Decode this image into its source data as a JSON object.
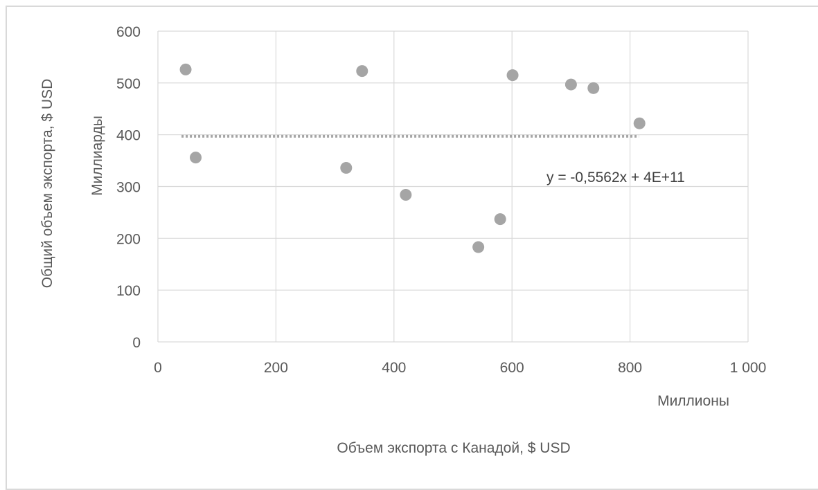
{
  "chart_data": {
    "type": "scatter",
    "xlabel": "Объем экспорта с Канадой, $ USD",
    "ylabel": "Общий объем экспорта, $ USD",
    "x_unit_label": "Миллионы",
    "y_unit_label": "Миллиарды",
    "xlim": [
      0,
      1000
    ],
    "ylim": [
      0,
      600
    ],
    "x_ticks": [
      "0",
      "200",
      "400",
      "600",
      "800",
      "1 000"
    ],
    "y_ticks": [
      "0",
      "100",
      "200",
      "300",
      "400",
      "500",
      "600"
    ],
    "x_tick_values": [
      0,
      200,
      400,
      600,
      800,
      1000
    ],
    "y_tick_values": [
      0,
      100,
      200,
      300,
      400,
      500,
      600
    ],
    "grid": true,
    "points": [
      {
        "x": 47,
        "y": 526
      },
      {
        "x": 64,
        "y": 356
      },
      {
        "x": 319,
        "y": 336
      },
      {
        "x": 346,
        "y": 523
      },
      {
        "x": 420,
        "y": 284
      },
      {
        "x": 543,
        "y": 183
      },
      {
        "x": 580,
        "y": 237
      },
      {
        "x": 601,
        "y": 515
      },
      {
        "x": 700,
        "y": 497
      },
      {
        "x": 738,
        "y": 490
      },
      {
        "x": 816,
        "y": 422
      }
    ],
    "trendline": {
      "type": "linear",
      "x_range": [
        40,
        815
      ],
      "y": 397,
      "equation": "y = -0,5562x + 4E+11"
    },
    "colors": {
      "points": "#a5a5a5",
      "grid": "#d9d9d9",
      "trendline": "#a5a5a5",
      "text": "#595959"
    }
  }
}
